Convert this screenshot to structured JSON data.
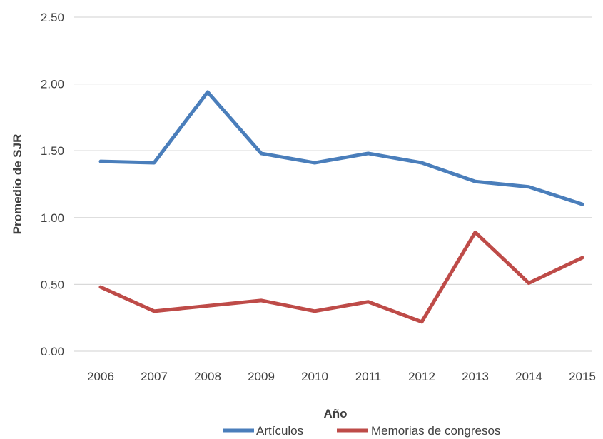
{
  "chart_data": {
    "type": "line",
    "title": "",
    "xlabel": "Año",
    "ylabel": "Promedio de SJR",
    "x": [
      "2006",
      "2007",
      "2008",
      "2009",
      "2010",
      "2011",
      "2012",
      "2013",
      "2014",
      "2015"
    ],
    "ylim": [
      0,
      2.5
    ],
    "yticks": [
      "0.00",
      "0.50",
      "1.00",
      "1.50",
      "2.00",
      "2.50"
    ],
    "grid": true,
    "legend_position": "bottom",
    "series": [
      {
        "name": "Artículos",
        "color": "#4a7ebb",
        "values": [
          1.42,
          1.41,
          1.94,
          1.48,
          1.41,
          1.48,
          1.41,
          1.27,
          1.23,
          1.1
        ]
      },
      {
        "name": "Memorias de congresos",
        "color": "#be4b48",
        "values": [
          0.48,
          0.3,
          0.34,
          0.38,
          0.3,
          0.37,
          0.22,
          0.89,
          0.51,
          0.7
        ]
      }
    ]
  }
}
